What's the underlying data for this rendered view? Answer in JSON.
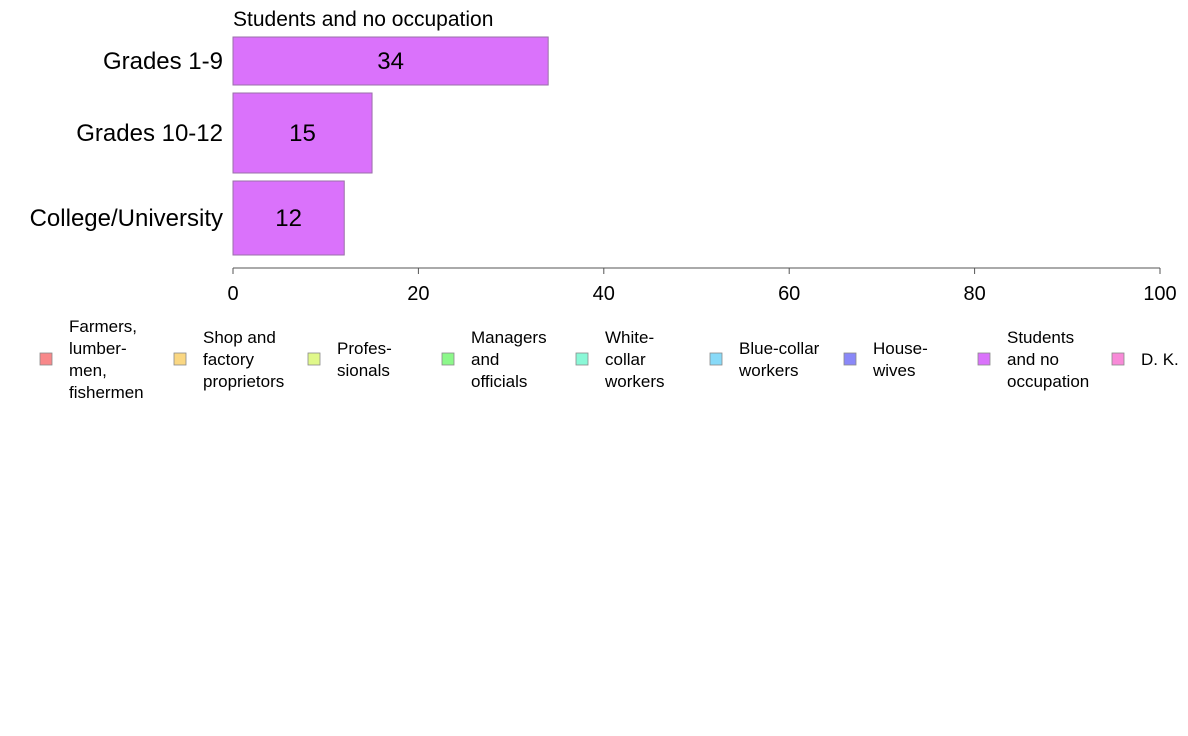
{
  "chart_data": {
    "type": "bar",
    "orientation": "horizontal",
    "panel_title": "Students and no occupation",
    "categories": [
      "Grades 1-9",
      "Grades 10-12",
      "College/University"
    ],
    "series": [
      {
        "name": "Students and no occupation",
        "color": "#DA72FB",
        "values": [
          34,
          15,
          12
        ],
        "data_labels": [
          "34",
          "15",
          "12"
        ]
      }
    ],
    "xlim": [
      0,
      100
    ],
    "xticks": [
      "0",
      "20",
      "40",
      "60",
      "80",
      "100"
    ],
    "grid": false,
    "legend_position": "bottom",
    "legend": [
      {
        "lines": [
          "Farmers,",
          "lumber-",
          "men,",
          "fishermen"
        ],
        "color": "#F8888A"
      },
      {
        "lines": [
          "Shop and",
          "factory",
          "proprietors"
        ],
        "color": "#FAD782"
      },
      {
        "lines": [
          "Profes-",
          "sionals"
        ],
        "color": "#E0F88A"
      },
      {
        "lines": [
          "Managers",
          "and",
          "officials"
        ],
        "color": "#8CF88A"
      },
      {
        "lines": [
          "White-",
          "collar",
          "workers"
        ],
        "color": "#8AF8D7"
      },
      {
        "lines": [
          "Blue-collar",
          "workers"
        ],
        "color": "#88DAF8"
      },
      {
        "lines": [
          "House-",
          "wives"
        ],
        "color": "#8A88F8"
      },
      {
        "lines": [
          "Students",
          "and no",
          "occupation"
        ],
        "color": "#DA72FB"
      },
      {
        "lines": [
          "D. K."
        ],
        "color": "#F88AD8"
      }
    ]
  }
}
